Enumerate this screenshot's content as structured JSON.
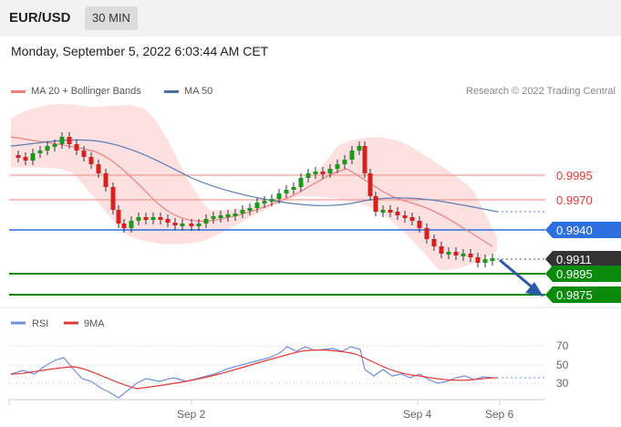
{
  "header": {
    "pair": "EUR/USD",
    "timeframe": "30 MIN",
    "datetime": "Monday, September 5, 2022 6:03:44 AM CET"
  },
  "legend": {
    "ma20": "MA 20 + Bollinger Bands",
    "ma50": "MA 50",
    "credit": "Research © 2022 Trading Central"
  },
  "rsi_legend": {
    "rsi": "RSI",
    "ma9": "9MA"
  },
  "levels": [
    {
      "value": "0.9995",
      "kind": "resistance"
    },
    {
      "value": "0.9970",
      "kind": "resistance"
    },
    {
      "value": "0.9940",
      "kind": "pivot"
    },
    {
      "value": "0.9911",
      "kind": "last"
    },
    {
      "value": "0.9895",
      "kind": "support"
    },
    {
      "value": "0.9875",
      "kind": "support"
    }
  ],
  "x_ticks": [
    "Sep 2",
    "Sep 4",
    "Sep 6"
  ],
  "rsi_ticks": [
    "70",
    "50",
    "30"
  ],
  "colors": {
    "ma20": "#f08080",
    "ma50": "#4a6fa5",
    "pivot": "#2b6fe0",
    "support": "#0a8a0a",
    "resistance": "#e53935",
    "band": "#fde0e0",
    "up": "#1a9a1a",
    "down": "#d62020",
    "last": "#333333",
    "rsi": "#6f8fe0",
    "rsi_ma": "#e53935",
    "arrow": "#2a5aa8"
  },
  "chart_data": [
    {
      "type": "candlestick",
      "title": "EUR/USD 30 MIN",
      "xlabel": "",
      "ylabel": "",
      "y_levels": [
        0.9995,
        0.997,
        0.994,
        0.9911,
        0.9895,
        0.9875
      ],
      "x_ticks": [
        "Sep 2",
        "Sep 4",
        "Sep 6"
      ],
      "series": [
        {
          "name": "MA 20 + Bollinger Bands"
        },
        {
          "name": "MA 50"
        }
      ],
      "forecast": "down arrow toward 0.9875"
    },
    {
      "type": "line",
      "series": [
        {
          "name": "RSI"
        },
        {
          "name": "9MA"
        }
      ],
      "y_ticks": [
        70,
        50,
        30
      ]
    }
  ]
}
